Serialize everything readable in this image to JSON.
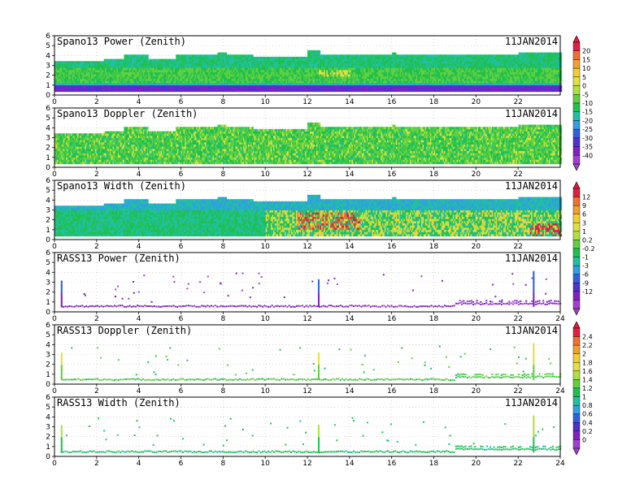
{
  "chart_data": [
    {
      "type": "heatmap",
      "title": "Spano13 Power (Zenith)",
      "date": "11JAN2014",
      "xlim": [
        0,
        24
      ],
      "ylim": [
        0,
        6
      ],
      "xticks": [
        "0",
        "2",
        "4",
        "6",
        "8",
        "10",
        "12",
        "14",
        "16",
        "18",
        "20",
        "22"
      ],
      "yticks": [
        "0",
        "1",
        "2",
        "3",
        "4",
        "5",
        "6"
      ],
      "grid": true,
      "colorbar": "A",
      "pattern": "power",
      "top_profile": [
        [
          0,
          3.3
        ],
        [
          2,
          3.3
        ],
        [
          2.3,
          3.5
        ],
        [
          3,
          3.5
        ],
        [
          3.3,
          3.9
        ],
        [
          4.2,
          3.9
        ],
        [
          4.4,
          3.5
        ],
        [
          5.5,
          3.5
        ],
        [
          5.7,
          3.9
        ],
        [
          7.5,
          3.9
        ],
        [
          7.7,
          4.3
        ],
        [
          8.1,
          3.9
        ],
        [
          9.2,
          3.9
        ],
        [
          9.4,
          3.7
        ],
        [
          11.8,
          3.8
        ],
        [
          12,
          4.4
        ],
        [
          12.6,
          3.9
        ],
        [
          16,
          4.1
        ],
        [
          16.2,
          3.9
        ],
        [
          21.8,
          3.9
        ],
        [
          22,
          4.3
        ],
        [
          24,
          4.3
        ]
      ]
    },
    {
      "type": "heatmap",
      "title": "Spano13 Doppler (Zenith)",
      "date": "11JAN2014",
      "xlim": [
        0,
        24
      ],
      "ylim": [
        0,
        6
      ],
      "xticks": [
        "0",
        "2",
        "4",
        "6",
        "8",
        "10",
        "12",
        "14",
        "16",
        "18",
        "20",
        "22"
      ],
      "yticks": [
        "0",
        "1",
        "2",
        "3",
        "4",
        "5",
        "6"
      ],
      "grid": true,
      "colorbar": "A",
      "pattern": "doppler",
      "top_profile": [
        [
          0,
          3.3
        ],
        [
          2,
          3.3
        ],
        [
          2.3,
          3.5
        ],
        [
          3,
          3.5
        ],
        [
          3.3,
          3.9
        ],
        [
          4.2,
          3.9
        ],
        [
          4.4,
          3.5
        ],
        [
          5.5,
          3.5
        ],
        [
          5.7,
          3.9
        ],
        [
          7.5,
          3.9
        ],
        [
          7.7,
          4.3
        ],
        [
          8.1,
          3.9
        ],
        [
          9.2,
          3.9
        ],
        [
          9.4,
          3.7
        ],
        [
          11.8,
          3.8
        ],
        [
          12,
          4.4
        ],
        [
          12.6,
          3.9
        ],
        [
          16,
          4.1
        ],
        [
          16.2,
          3.9
        ],
        [
          21.8,
          3.9
        ],
        [
          22,
          4.3
        ],
        [
          24,
          4.3
        ]
      ]
    },
    {
      "type": "heatmap",
      "title": "Spano13 Width (Zenith)",
      "date": "11JAN2014",
      "xlim": [
        0,
        24
      ],
      "ylim": [
        0,
        6
      ],
      "xticks": [
        "0",
        "2",
        "4",
        "6",
        "8",
        "10",
        "12",
        "14",
        "16",
        "18",
        "20",
        "22"
      ],
      "yticks": [
        "0",
        "1",
        "2",
        "3",
        "4",
        "5",
        "6"
      ],
      "grid": true,
      "colorbar": "B",
      "pattern": "width",
      "top_profile": [
        [
          0,
          3.3
        ],
        [
          2,
          3.3
        ],
        [
          2.3,
          3.5
        ],
        [
          3,
          3.5
        ],
        [
          3.3,
          3.9
        ],
        [
          4.2,
          3.9
        ],
        [
          4.4,
          3.5
        ],
        [
          5.5,
          3.5
        ],
        [
          5.7,
          3.9
        ],
        [
          7.5,
          3.9
        ],
        [
          7.7,
          4.3
        ],
        [
          8.1,
          3.9
        ],
        [
          9.2,
          3.9
        ],
        [
          9.4,
          3.7
        ],
        [
          11.8,
          3.8
        ],
        [
          12,
          4.4
        ],
        [
          12.6,
          3.9
        ],
        [
          16,
          4.1
        ],
        [
          16.2,
          3.9
        ],
        [
          21.8,
          3.9
        ],
        [
          22,
          4.3
        ],
        [
          24,
          4.3
        ]
      ]
    },
    {
      "type": "scatter",
      "title": "RASS13 Power (Zenith)",
      "date": "11JAN2014",
      "xlim": [
        0,
        24
      ],
      "ylim": [
        0,
        6
      ],
      "xticks": [
        "0",
        "2",
        "4",
        "6",
        "8",
        "10",
        "12",
        "14",
        "16",
        "18",
        "20",
        "22",
        "24"
      ],
      "yticks": [
        "0",
        "1",
        "2",
        "3",
        "4",
        "5",
        "6"
      ],
      "grid": true,
      "colorbar": "B",
      "pattern": "rass_power",
      "base_height": 0.65,
      "spikes": [
        {
          "x": 0.3,
          "y_top": 3.2
        },
        {
          "x": 12.5,
          "y_top": 3.3
        },
        {
          "x": 22.7,
          "y_top": 4.2
        }
      ]
    },
    {
      "type": "scatter",
      "title": "RASS13 Doppler (Zenith)",
      "date": "11JAN2014",
      "xlim": [
        0,
        24
      ],
      "ylim": [
        0,
        6
      ],
      "xticks": [
        "0",
        "2",
        "4",
        "6",
        "8",
        "10",
        "12",
        "14",
        "16",
        "18",
        "20",
        "22",
        "24"
      ],
      "yticks": [
        "0",
        "1",
        "2",
        "3",
        "4",
        "5",
        "6"
      ],
      "grid": true,
      "colorbar": "C",
      "pattern": "rass_doppler",
      "base_height": 0.55,
      "spikes": [
        {
          "x": 0.3,
          "y_top": 3.3
        },
        {
          "x": 12.5,
          "y_top": 3.2
        },
        {
          "x": 22.7,
          "y_top": 4.2
        }
      ]
    },
    {
      "type": "scatter",
      "title": "RASS13 Width (Zenith)",
      "date": "11JAN2014",
      "xlim": [
        0,
        24
      ],
      "ylim": [
        0,
        6
      ],
      "xticks": [
        "0",
        "2",
        "4",
        "6",
        "8",
        "10",
        "12",
        "14",
        "16",
        "18",
        "20",
        "22",
        "24"
      ],
      "yticks": [
        "0",
        "1",
        "2",
        "3",
        "4",
        "5",
        "6"
      ],
      "grid": true,
      "colorbar": "C",
      "pattern": "rass_width",
      "base_height": 0.55,
      "spikes": [
        {
          "x": 0.3,
          "y_top": 3.3
        },
        {
          "x": 12.5,
          "y_top": 3.2
        },
        {
          "x": 22.7,
          "y_top": 4.2
        }
      ]
    }
  ],
  "colorbars": {
    "A": {
      "labels": [
        "20",
        "15",
        "10",
        "5",
        "0",
        "-5",
        "-10",
        "-15",
        "-20",
        "-25",
        "-30",
        "-35",
        "-40"
      ],
      "colors": [
        "#e02040",
        "#f07030",
        "#f0a030",
        "#f0d030",
        "#e0e040",
        "#b0e040",
        "#60d040",
        "#20c050",
        "#20c0a0",
        "#30a0e0",
        "#3060e0",
        "#5030d0",
        "#8020c0",
        "#a040d0"
      ]
    },
    "B": {
      "labels": [
        "12",
        "9",
        "6",
        "3",
        "1",
        "0.2",
        "-0.2",
        "-1",
        "-3",
        "-6",
        "-9",
        "-12"
      ],
      "colors": [
        "#e02040",
        "#f07030",
        "#f0a030",
        "#f0d030",
        "#e0e040",
        "#b0e040",
        "#60d040",
        "#20c050",
        "#20c0a0",
        "#30a0e0",
        "#3060e0",
        "#5030d0",
        "#8020c0",
        "#a040d0"
      ]
    },
    "C": {
      "labels": [
        "2.4",
        "2.2",
        "2",
        "1.8",
        "1.6",
        "1.4",
        "1.2",
        "1",
        "0.8",
        "0.6",
        "0.4",
        "0.2",
        "0"
      ],
      "colors": [
        "#e02040",
        "#f07030",
        "#f0a030",
        "#f0d030",
        "#e0e040",
        "#b0e040",
        "#60d040",
        "#20c050",
        "#20c0a0",
        "#30a0e0",
        "#3060e0",
        "#5030d0",
        "#8020c0",
        "#a040d0"
      ]
    }
  }
}
